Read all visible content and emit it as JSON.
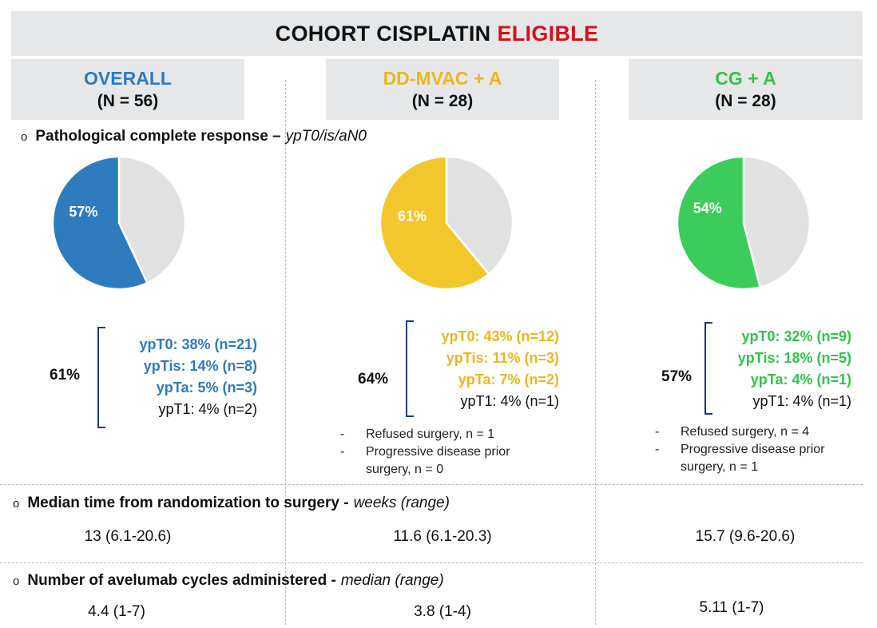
{
  "header": {
    "title_prefix": "COHORT CISPLATIN",
    "title_highlight": "ELIGIBLE",
    "highlight_color": "#d0141c"
  },
  "arms": [
    {
      "name": "OVERALL",
      "n": "(N = 56)",
      "color": "#2e7bbd"
    },
    {
      "name": "DD-MVAC + A",
      "n": "(N = 28)",
      "color": "#e8b820"
    },
    {
      "name": "CG + A",
      "n": "(N = 28)",
      "color": "#33c150"
    }
  ],
  "sections": {
    "pcr": {
      "title": "Pathological complete response –",
      "unit": "ypT0/is/aN0"
    },
    "time": {
      "title": "Median time from randomization to surgery -",
      "unit": "weeks (range)"
    },
    "cycles": {
      "title": "Number of avelumab cycles administered -",
      "unit": "median (range)"
    }
  },
  "bullet_glyph": "o",
  "chart_data": [
    {
      "type": "pie",
      "series_color": "#2e7bbd",
      "rest_color": "#e1e1e1",
      "values": [
        57,
        43
      ],
      "labels": [
        "57%",
        ""
      ]
    },
    {
      "type": "pie",
      "series_color": "#f2c72c",
      "rest_color": "#e1e1e1",
      "values": [
        61,
        39
      ],
      "labels": [
        "61%",
        ""
      ]
    },
    {
      "type": "pie",
      "series_color": "#3ccc5b",
      "rest_color": "#e1e1e1",
      "values": [
        54,
        46
      ],
      "labels": [
        "54%",
        ""
      ]
    }
  ],
  "breakdown": [
    {
      "total": "61%",
      "items": [
        "ypT0: 38% (n=21)",
        "ypTis: 14% (n=8)",
        "ypTa: 5% (n=3)"
      ],
      "other": "ypT1: 4% (n=2)"
    },
    {
      "total": "64%",
      "items": [
        "ypT0: 43% (n=12)",
        "ypTis: 11% (n=3)",
        "ypTa: 7% (n=2)"
      ],
      "other": "ypT1: 4% (n=1)"
    },
    {
      "total": "57%",
      "items": [
        "ypT0: 32% (n=9)",
        "ypTis: 18% (n=5)",
        "ypTa: 4% (n=1)"
      ],
      "other": "ypT1: 4% (n=1)"
    }
  ],
  "notes": [
    [],
    [
      {
        "dash": "-",
        "text": "Refused surgery, n = 1"
      },
      {
        "dash": "-",
        "text": "Progressive disease prior surgery, n = 0"
      }
    ],
    [
      {
        "dash": "-",
        "text": "Refused surgery, n = 4"
      },
      {
        "dash": "-",
        "text": "Progressive disease prior surgery, n = 1"
      }
    ]
  ],
  "median_time": [
    "13 (6.1-20.6)",
    "11.6 (6.1-20.3)",
    "15.7 (9.6-20.6)"
  ],
  "avelumab_cycles": [
    "4.4 (1-7)",
    "3.8 (1-4)",
    "5.11 (1-7)"
  ]
}
